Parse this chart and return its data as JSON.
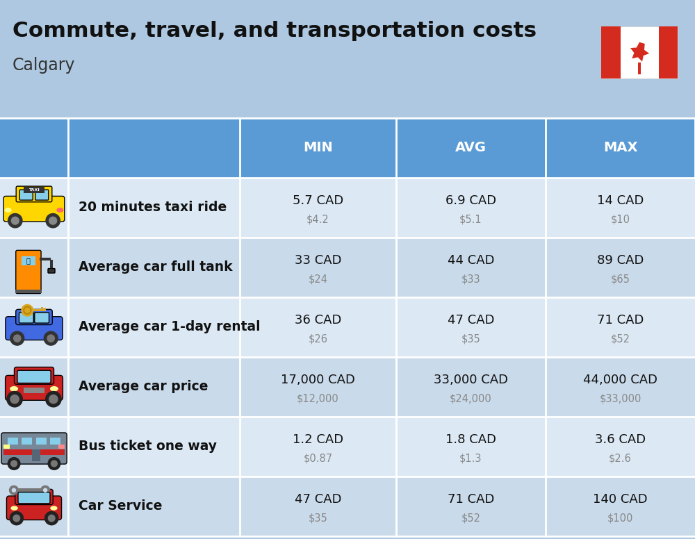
{
  "title": "Commute, travel, and transportation costs",
  "subtitle": "Calgary",
  "background_color": "#adc8e0",
  "header_bg_color": "#5b9bd5",
  "header_text_color": "#ffffff",
  "row_colors": [
    "#dce9f5",
    "#c9daea"
  ],
  "col_header_labels": [
    "MIN",
    "AVG",
    "MAX"
  ],
  "rows": [
    {
      "label": "20 minutes taxi ride",
      "min_cad": "5.7 CAD",
      "min_usd": "$4.2",
      "avg_cad": "6.9 CAD",
      "avg_usd": "$5.1",
      "max_cad": "14 CAD",
      "max_usd": "$10"
    },
    {
      "label": "Average car full tank",
      "min_cad": "33 CAD",
      "min_usd": "$24",
      "avg_cad": "44 CAD",
      "avg_usd": "$33",
      "max_cad": "89 CAD",
      "max_usd": "$65"
    },
    {
      "label": "Average car 1-day rental",
      "min_cad": "36 CAD",
      "min_usd": "$26",
      "avg_cad": "47 CAD",
      "avg_usd": "$35",
      "max_cad": "71 CAD",
      "max_usd": "$52"
    },
    {
      "label": "Average car price",
      "min_cad": "17,000 CAD",
      "min_usd": "$12,000",
      "avg_cad": "33,000 CAD",
      "avg_usd": "$24,000",
      "max_cad": "44,000 CAD",
      "max_usd": "$33,000"
    },
    {
      "label": "Bus ticket one way",
      "min_cad": "1.2 CAD",
      "min_usd": "$0.87",
      "avg_cad": "1.8 CAD",
      "avg_usd": "$1.3",
      "max_cad": "3.6 CAD",
      "max_usd": "$2.6"
    },
    {
      "label": "Car Service",
      "min_cad": "47 CAD",
      "min_usd": "$35",
      "avg_cad": "71 CAD",
      "avg_usd": "$52",
      "max_cad": "140 CAD",
      "max_usd": "$100"
    }
  ]
}
